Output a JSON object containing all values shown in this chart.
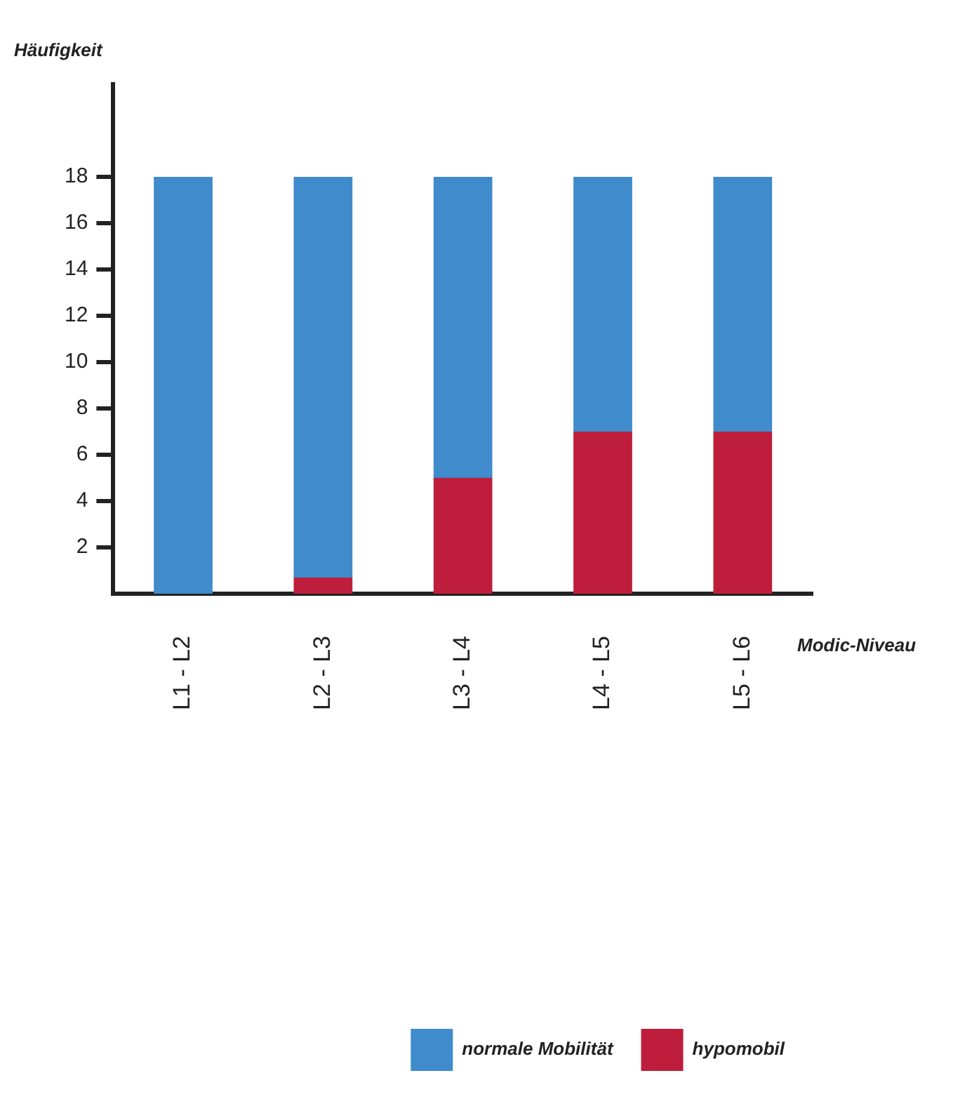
{
  "chart_data": {
    "type": "bar",
    "stacked": true,
    "ylabel": "Häufigkeit",
    "xlabel": "Modic-Niveau",
    "categories": [
      "L1 - L2",
      "L2 - L3",
      "L3 - L4",
      "L4 - L5",
      "L5 - L6"
    ],
    "series": [
      {
        "name": "hypomobil",
        "color": "#be1e3c",
        "values": [
          0,
          0.7,
          5,
          7,
          7
        ]
      },
      {
        "name": "normale Mobilität",
        "color": "#3f8bcb",
        "values": [
          18,
          17.3,
          13,
          11,
          11
        ]
      }
    ],
    "ylim": [
      0,
      22
    ],
    "yticks": [
      2,
      4,
      6,
      8,
      10,
      12,
      14,
      16,
      18
    ],
    "grid": false,
    "legend": "bottom right"
  }
}
